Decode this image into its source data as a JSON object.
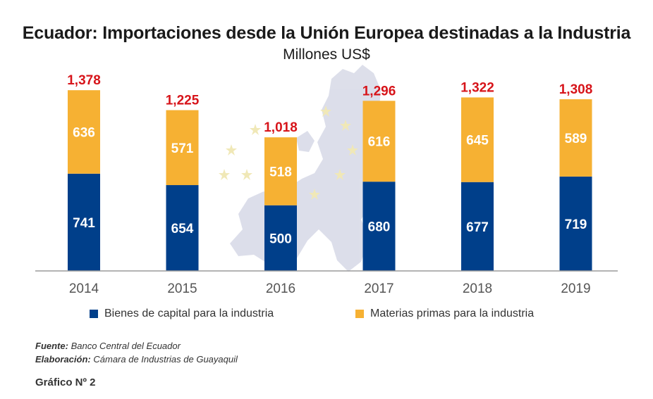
{
  "header": {
    "title": "Ecuador: Importaciones desde la Unión Europea destinadas a la Industria",
    "subtitle": "Millones US$"
  },
  "chart_data": {
    "type": "bar",
    "stacked": true,
    "categories": [
      "2014",
      "2015",
      "2016",
      "2017",
      "2018",
      "2019"
    ],
    "series": [
      {
        "name": "Bienes de capital para la industria",
        "color": "#003f8a",
        "values": [
          741,
          654,
          500,
          680,
          677,
          719
        ]
      },
      {
        "name": "Materias primas para la industria",
        "color": "#f6b133",
        "values": [
          636,
          571,
          518,
          616,
          645,
          589
        ]
      }
    ],
    "totals": [
      "1,378",
      "1,225",
      "1,018",
      "1,296",
      "1,322",
      "1,308"
    ],
    "total_color": "#d7141a",
    "ylim": [
      0,
      1400
    ],
    "grid": false,
    "legend_position": "bottom"
  },
  "footer": {
    "source_label": "Fuente:",
    "source_text": "Banco Central del Ecuador",
    "author_label": "Elaboración:",
    "author_text": "Cámara de Industrias de Guayaquil",
    "chart_number": "Gráfico Nº 2"
  }
}
